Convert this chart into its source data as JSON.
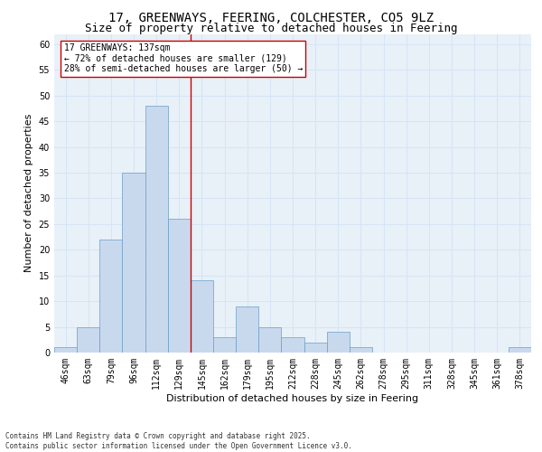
{
  "title_line1": "17, GREENWAYS, FEERING, COLCHESTER, CO5 9LZ",
  "title_line2": "Size of property relative to detached houses in Feering",
  "xlabel": "Distribution of detached houses by size in Feering",
  "ylabel": "Number of detached properties",
  "bar_color": "#c8d9ee",
  "bar_edge_color": "#6a9ec5",
  "categories": [
    "46sqm",
    "63sqm",
    "79sqm",
    "96sqm",
    "112sqm",
    "129sqm",
    "145sqm",
    "162sqm",
    "179sqm",
    "195sqm",
    "212sqm",
    "228sqm",
    "245sqm",
    "262sqm",
    "278sqm",
    "295sqm",
    "311sqm",
    "328sqm",
    "345sqm",
    "361sqm",
    "378sqm"
  ],
  "values": [
    1,
    5,
    22,
    35,
    48,
    26,
    14,
    3,
    9,
    5,
    3,
    2,
    4,
    1,
    0,
    0,
    0,
    0,
    0,
    0,
    1
  ],
  "ylim": [
    0,
    62
  ],
  "yticks": [
    0,
    5,
    10,
    15,
    20,
    25,
    30,
    35,
    40,
    45,
    50,
    55,
    60
  ],
  "vline_x": 5.5,
  "vline_color": "#cc0000",
  "annotation_text": "17 GREENWAYS: 137sqm\n← 72% of detached houses are smaller (129)\n28% of semi-detached houses are larger (50) →",
  "annotation_box_color": "#ffffff",
  "annotation_box_edge": "#cc0000",
  "grid_color": "#d5e4f5",
  "background_color": "#e8f0f8",
  "footer_text": "Contains HM Land Registry data © Crown copyright and database right 2025.\nContains public sector information licensed under the Open Government Licence v3.0.",
  "title_fontsize": 10,
  "subtitle_fontsize": 9,
  "axis_label_fontsize": 8,
  "tick_fontsize": 7,
  "annotation_fontsize": 7,
  "footer_fontsize": 5.5
}
